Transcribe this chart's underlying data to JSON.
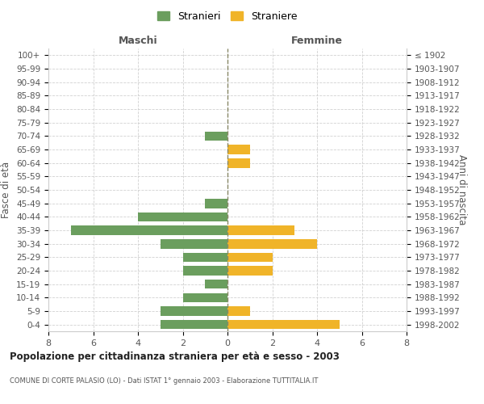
{
  "age_groups": [
    "100+",
    "95-99",
    "90-94",
    "85-89",
    "80-84",
    "75-79",
    "70-74",
    "65-69",
    "60-64",
    "55-59",
    "50-54",
    "45-49",
    "40-44",
    "35-39",
    "30-34",
    "25-29",
    "20-24",
    "15-19",
    "10-14",
    "5-9",
    "0-4"
  ],
  "birth_years": [
    "≤ 1902",
    "1903-1907",
    "1908-1912",
    "1913-1917",
    "1918-1922",
    "1923-1927",
    "1928-1932",
    "1933-1937",
    "1938-1942",
    "1943-1947",
    "1948-1952",
    "1953-1957",
    "1958-1962",
    "1963-1967",
    "1968-1972",
    "1973-1977",
    "1978-1982",
    "1983-1987",
    "1988-1992",
    "1993-1997",
    "1998-2002"
  ],
  "males": [
    0,
    0,
    0,
    0,
    0,
    0,
    1,
    0,
    0,
    0,
    0,
    1,
    4,
    7,
    3,
    2,
    2,
    1,
    2,
    3,
    3
  ],
  "females": [
    0,
    0,
    0,
    0,
    0,
    0,
    0,
    1,
    1,
    0,
    0,
    0,
    0,
    3,
    4,
    2,
    2,
    0,
    0,
    1,
    5
  ],
  "male_color": "#6b9e5e",
  "female_color": "#f0b429",
  "title": "Popolazione per cittadinanza straniera per età e sesso - 2003",
  "subtitle": "COMUNE DI CORTE PALASIO (LO) - Dati ISTAT 1° gennaio 2003 - Elaborazione TUTTITALIA.IT",
  "xlabel_left": "Maschi",
  "xlabel_right": "Femmine",
  "ylabel_left": "Fasce di età",
  "ylabel_right": "Anni di nascita",
  "legend_males": "Stranieri",
  "legend_females": "Straniere",
  "xlim": 8,
  "background_color": "#ffffff",
  "grid_color": "#cccccc"
}
